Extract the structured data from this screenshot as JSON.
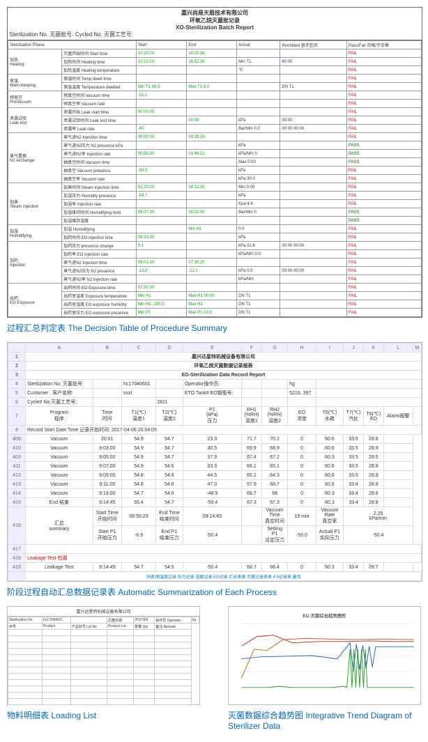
{
  "report1": {
    "title1": "嘉兴尚是天眉技术有限公司",
    "title2": "环氧乙烷灭菌批记录",
    "title3": "XO-Sterilization Batch Report",
    "sterinfo": "Sterilization No. 灭菌批号:            Cycled No. 灭菌工艺号:",
    "phase_hdr": [
      "Sterilization Phase",
      "Start",
      "End",
      "Actual",
      "Permitted 容许区间",
      "Pass/Fail 合格/不合格"
    ],
    "groups": [
      {
        "name": "加热\nHeating",
        "rows": [
          [
            "灭菌开始时间 Start time",
            "10:10:20",
            "10:32:38",
            "",
            "",
            "FAIL"
          ],
          [
            "加热时间 Heating time",
            "10:10:20",
            "16:52:38",
            "Min T1.",
            "60:00",
            "FAIL"
          ],
          [
            "加热温度 Heating temperature",
            "",
            "",
            "℃",
            "",
            "FAIL"
          ]
        ]
      },
      {
        "name": "保温\nWarn-keeping",
        "rows": [
          [
            "保温时间 Temp dwell time",
            "",
            "",
            "",
            "",
            "FAIL"
          ],
          [
            "保温温度 Temperature dwelled",
            "Min T1   49.5",
            "Max T1    8.0",
            "",
            "DN T1",
            "FAIL"
          ]
        ]
      },
      {
        "name": "预真空\nPreVacuum",
        "rows": [
          [
            "预真空时间 Vacuum time",
            "-51.1",
            "",
            "",
            "",
            "FAIL"
          ],
          [
            "预真空率 Vacuum rate",
            "",
            "",
            "",
            "",
            "FAIL"
          ]
        ]
      },
      {
        "name": "泄漏试验\nLeak test",
        "rows": [
          [
            "泄漏开始 Leak start time",
            "00:00:00",
            "",
            "",
            "",
            "FAIL"
          ],
          [
            "泄漏试验时间 Leak test time",
            "",
            "00:00",
            "kPa",
            "00:00",
            "FAIL"
          ],
          [
            "泄漏率 Leak rate",
            "-60",
            "",
            "Bar/Min  0.0",
            "00:00   00:00",
            "FAIL"
          ]
        ]
      },
      {
        "name": "蒸气置换\nN2 exchange",
        "rows": [
          [
            "蒸气进N2 Injection time",
            "00:00:00",
            "00:39:26",
            "",
            "",
            "FAIL"
          ],
          [
            "蒸气进N2压力 N2 presence kPa",
            "",
            "",
            "kPa",
            "",
            "PASS"
          ],
          [
            "蒸气进N2率 Injection rate",
            "00:50:30",
            "01:46:12",
            "kPa/Min  0",
            "",
            "PASS"
          ],
          [
            "抽真空时间 Vacuum time",
            "",
            "",
            "Max    0:00",
            "",
            "PASS"
          ],
          [
            "抽真空 Vacuum presence",
            "-59.5",
            "",
            "kPa",
            "",
            "FAIL"
          ],
          [
            "抽真空率 Vacuum rate",
            "",
            "",
            "kPa  30.0",
            "",
            "FAIL"
          ]
        ]
      },
      {
        "name": "加蒸\nSteam injection",
        "rows": [
          [
            "加蒸时间 Steam injection time",
            "02:10:20",
            "04:12:30",
            "Min    0.00",
            "",
            "FAIL"
          ],
          [
            "加湿压力 Humidity presence",
            "-54.7",
            "",
            "kPa",
            "",
            "FAIL"
          ],
          [
            "加湿率 Injection rate",
            "",
            "",
            "Kpa  4:6",
            "",
            "FAIL"
          ],
          [
            "加湿维持时间 Humidifying hold",
            "08:07:30",
            "08:02:30",
            "Bar/Min  0",
            "",
            "PASS"
          ],
          [
            "加湿维持湿度",
            "",
            "",
            "",
            "",
            "PASS"
          ]
        ]
      },
      {
        "name": "加湿\nHumidifying",
        "rows": [
          [
            "加湿 Humidifying",
            "",
            "Min H1",
            "0.0",
            "",
            "FAIL"
          ],
          [
            "加药时间 EO injection time",
            "08:23:30",
            "",
            "kPa",
            "",
            "FAIL"
          ]
        ]
      },
      {
        "name": "加药\nInjection",
        "rows": [
          [
            "加药压力 presence change",
            "5.1",
            "",
            "kPa   31.6",
            "00:00   00:00",
            "FAIL"
          ],
          [
            "加药率 EO injection rate",
            "",
            "",
            "kPa/Min  0.0",
            "",
            "FAIL"
          ],
          [
            "蒸气进N2 Injection time",
            "09:01:30",
            "07:30:25",
            "",
            "",
            "FAIL"
          ],
          [
            "蒸气进N2压力 N2 presence",
            "-12.0",
            "-12.1",
            "kPa   0.0",
            "00:00   00:00",
            "FAIL"
          ],
          [
            "蒸气进N2率 N2 Injection rate",
            "",
            "",
            "kPa/Min",
            "",
            "FAIL"
          ]
        ]
      },
      {
        "name": "出药\nEO Exposure",
        "rows": [
          [
            "出药时间 EO Exposure time",
            "07:30:30",
            "",
            "",
            "",
            "FAIL"
          ],
          [
            "出药室温差 Exposure temperature",
            "Min H1",
            "Max H1 00:00",
            "DN T1",
            "",
            "FAIL"
          ],
          [
            "出药室湿度 EO exposure humidity",
            "Min H1 -200.0",
            "Max H1",
            "DN T1",
            "",
            "FAIL"
          ],
          [
            "出药室压力 EO exposure presence",
            "Min P1",
            "Max P1  10.0",
            "DN T1",
            "",
            "FAIL"
          ]
        ]
      }
    ]
  },
  "caption1": "过程汇总判定表  The Decision Table of Procedure Summary",
  "sheet": {
    "cols": [
      "A",
      "B",
      "C",
      "D",
      "E",
      "F",
      "G",
      "H",
      "I",
      "J",
      "K",
      "L",
      "M"
    ],
    "title1": "嘉兴达星特机械设备有限公司",
    "title2": "环氧乙烷灭菌数据记录报表",
    "title3": "EO-Sterilization Data Record Report",
    "info_rows": [
      [
        "Sterilization No: 灭菌批号:",
        "",
        "hc17040601",
        "",
        "Operator操作员:",
        "",
        "",
        "hg"
      ],
      [
        "Customer . 客户名称:",
        "",
        "ssxr",
        "",
        "ETO Tank# EO钢瓶号:",
        "",
        "",
        "5216. 397"
      ],
      [
        "Cycle#    No.灭菌工艺号:",
        "",
        "",
        "DG1",
        "",
        "",
        "",
        ""
      ]
    ],
    "headers": [
      "Program\n程序",
      "Time\n时间",
      "T1(℃)\n温度1",
      "T2(℃)\n温度2",
      "P1\n(kPa)\n压力",
      "RH1\n(%RH)\n湿度1",
      "RH2\n(%RH)\n湿度2",
      "EO\n浓度",
      "T6(℃)\n水箱",
      "T7(℃)\n汽化",
      "T6(℃)\nEO",
      "Alarm报警"
    ],
    "record_start": "Record Start Date Time 记录开始时间:   2017-04-06 20:04:05",
    "data": [
      [
        "409",
        "Vacuum",
        "20:61",
        "54.9",
        "54.7",
        "23.3",
        "71.7",
        "70.2",
        "0",
        "60.6",
        "33.5",
        "28.8",
        ""
      ],
      [
        "410",
        "Vacuum",
        "9:03:00",
        "54.9",
        "54.7",
        "30.5",
        "69.9",
        "68.9",
        "0",
        "60.6",
        "33.5",
        "28.9",
        ""
      ],
      [
        "403",
        "Vacuum",
        "9:05:00",
        "54.9",
        "54.7",
        "37.9",
        "67.4",
        "67.2",
        "0",
        "60.3",
        "33.5",
        "29.5",
        ""
      ],
      [
        "411",
        "Vacuum",
        "9:07:00",
        "54.9",
        "54.6",
        "33.3",
        "66.1",
        "65.1",
        "0",
        "60.6",
        "33.5",
        "28.8",
        ""
      ],
      [
        "412",
        "Vacuum",
        "9:09:00",
        "54.8",
        "54.6",
        "44.5",
        "65.2",
        "64.3",
        "0",
        "60.6",
        "33.5",
        "28.8",
        ""
      ],
      [
        "413",
        "Vacuum",
        "9:11:00",
        "54.8",
        "54.6",
        "47.0",
        "57.9",
        "68.7",
        "0",
        "60.6",
        "33.4",
        "28.8",
        ""
      ],
      [
        "414",
        "Vacuum",
        "9:13:00",
        "54.7",
        "54.6",
        "-48.9",
        "68.7",
        "68",
        "0",
        "60.3",
        "33.4",
        "28.8",
        ""
      ],
      [
        "415",
        "End 结束",
        "9:14:45",
        "55.4",
        "54.7",
        "-50.4",
        "67.3",
        "67.3",
        "0",
        "60.3",
        "33.4",
        "28.8",
        ""
      ]
    ],
    "summary": {
      "label": "汇总\nsummary",
      "start_time_lbl": "Start Time\n开始时间",
      "start_time": "08:55:25",
      "end_time_lbl": "End Time\n结束时间",
      "end_time": "09:14:45",
      "vac_time_lbl": "Vacuum\nTime\n真空时间",
      "vac_time": "19 min",
      "vac_rate_lbl": "Vacuum\nRate\n真空率",
      "vac_rate": "2.29\nkPa/min",
      "start_p1_lbl": "Start P1\n开始压力",
      "start_p1": "-6.9",
      "end_p1_lbl": "End P1\n结束压力",
      "end_p1": "-50.4",
      "setting_p1_lbl": "Setting\nP1\n设定压力",
      "setting_p1": "-50.0",
      "actual_p1_lbl": "Actual P1\n实际压力",
      "actual_p1": "-50.4"
    },
    "leakage_lbl": "Leakage Test 检漏",
    "leakage_row": [
      "419",
      "Leakage Test",
      "9:14:45",
      "54.7",
      "54.5",
      "-50.4",
      "68.7",
      "66.4",
      "0",
      "60.3",
      "33.4",
      "28.7",
      ""
    ],
    "links": "决速.图温度记录  压力记录  湿度记录  EO记录  汇总表表  灭菌记录表表  4 h记录表 叠加"
  },
  "caption2": "阶段过程自动汇总数据记录表  Automatic Summarization of Each Process",
  "loadlist": {
    "title": "嘉兴达星特机械设备有限公司",
    "hdr_row": [
      "Sterilization No",
      "hc17040601",
      "",
      "灭菌日期",
      "2017/4/6",
      "操作员 Operator",
      "hg"
    ],
    "cols": [
      "序号",
      "Product",
      "产品批号 Lot No",
      "Product Lot",
      "数量 Qty",
      "备注 Remark"
    ]
  },
  "caption3": "物料明细表  Loading List",
  "caption4": "灭菌数据综合趋势图  Integrative Trend Diagram of Sterilizer Data",
  "trend": {
    "title": "EO 灭菌综合趋势图形",
    "colors": {
      "line1": "#c02020",
      "line2": "#2060c0",
      "line3": "#20a020",
      "line4": "#c06010",
      "bg": "#fff",
      "grid": "#ddd"
    }
  }
}
